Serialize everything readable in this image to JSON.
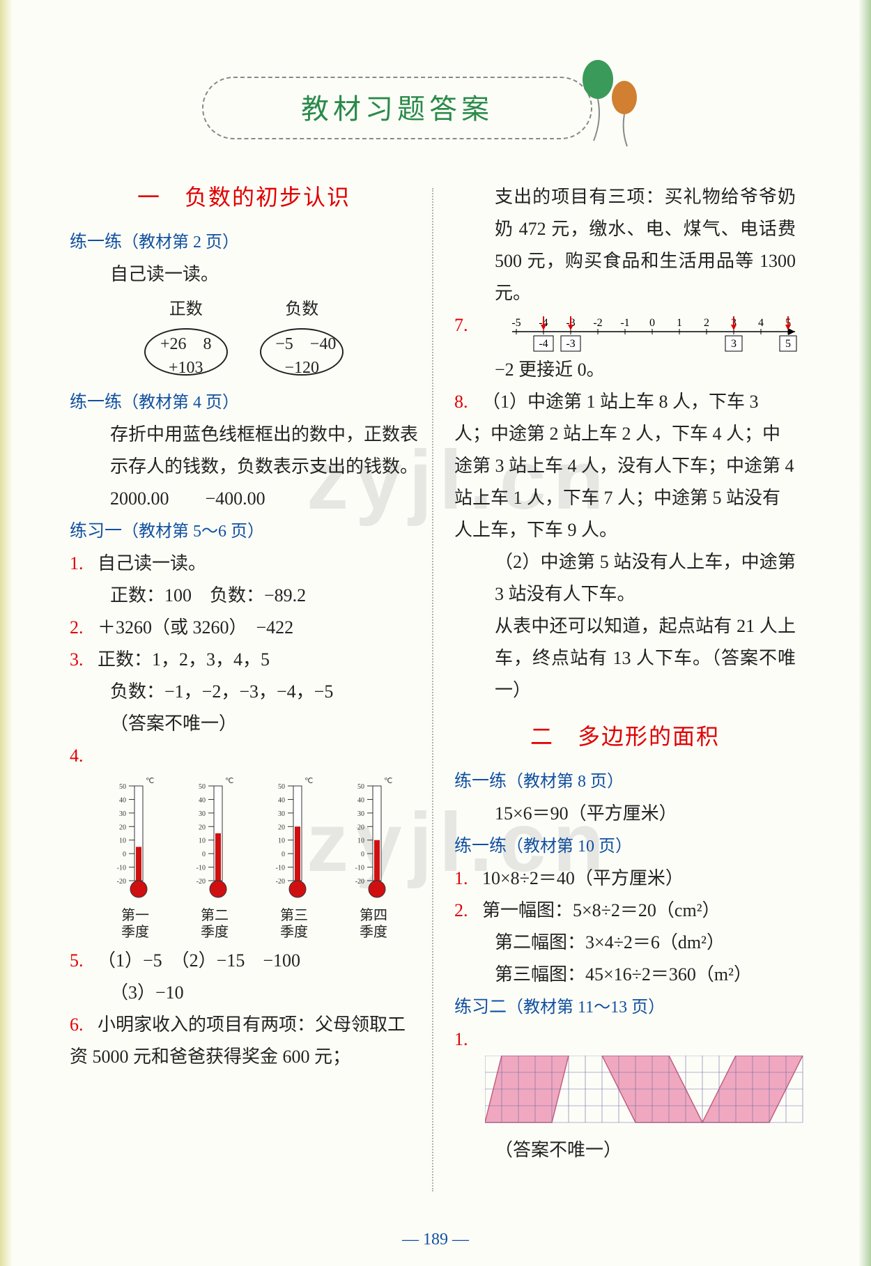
{
  "page_title": "教材习题答案",
  "watermark": "zyjl.cn",
  "page_number": "— 189 —",
  "colors": {
    "red": "#e00000",
    "blue": "#1050a0",
    "green": "#2a8a4a",
    "thermo_red": "#d01010",
    "thermo_border": "#333",
    "grid_fill": "#f0a8c0",
    "grid_line": "#6a6aa0",
    "balloon_green": "#3a9a5a",
    "balloon_orange": "#d08030"
  },
  "section1": {
    "title": "一　负数的初步认识",
    "l1_hdr": "练一练",
    "l1_ref": "（教材第 2 页）",
    "l1_txt": "自己读一读。",
    "pos_hdr": "正数",
    "neg_hdr": "负数",
    "pos_vals": "+26　8\n+103",
    "neg_vals": "−5　−40\n−120",
    "l2_hdr": "练一练",
    "l2_ref": "（教材第 4 页）",
    "l2_p": "存折中用蓝色线框框出的数中，正数表示存人的钱数，负数表示支出的钱数。",
    "l2_v": "2000.00　　−400.00",
    "ex1_hdr": "练习一",
    "ex1_ref": "（教材第 5～6 页）",
    "q1": "1.",
    "q1a": "自己读一读。",
    "q1b": "正数：100　负数：−89.2",
    "q2": "2.",
    "q2a": "＋3260（或 3260）　−422",
    "q3": "3.",
    "q3a": "正数：1，2，3，4，5",
    "q3b": "负数：−1，−2，−3，−4，−5",
    "q3c": "（答案不唯一）",
    "q4": "4.",
    "thermo_unit": "℃",
    "thermo_scale": [
      50,
      40,
      30,
      20,
      10,
      0,
      -10,
      -20
    ],
    "thermos": [
      {
        "label": "第一\n季度",
        "fill_to": 5
      },
      {
        "label": "第二\n季度",
        "fill_to": 15
      },
      {
        "label": "第三\n季度",
        "fill_to": 20
      },
      {
        "label": "第四\n季度",
        "fill_to": 10
      }
    ],
    "q5": "5.",
    "q5a": "（1）−5　（2）−15　−100",
    "q5b": "（3）−10",
    "q6": "6.",
    "q6a": "小明家收入的项目有两项：父母领取工资 5000 元和爸爸获得奖金 600 元；",
    "q6b": "支出的项目有三项：买礼物给爷爷奶奶 472 元，缴水、电、煤气、电话费 500 元，购买食品和生活用品等 1300 元。",
    "q7": "7.",
    "nline_ticks": [
      -5,
      -4,
      -3,
      -2,
      -1,
      0,
      1,
      2,
      3,
      4,
      5
    ],
    "nline_boxes_left": [
      "-4",
      "-3"
    ],
    "nline_boxes_right": [
      "3",
      "5"
    ],
    "nline_arrows": [
      -4,
      -3,
      3,
      5
    ],
    "q7a": "−2 更接近 0。",
    "q8": "8.",
    "q8a": "（1）中途第 1 站上车 8 人，下车 3 人；中途第 2 站上车 2 人，下车 4 人；中途第 3 站上车 4 人，没有人下车；中途第 4 站上车 1 人，下车 7 人；中途第 5 站没有人上车，下车 9 人。",
    "q8b": "（2）中途第 5 站没有人上车，中途第 3 站没有人下车。",
    "q8c": "从表中还可以知道，起点站有 21 人上车，终点站有 13 人下车。（答案不唯一）"
  },
  "section2": {
    "title": "二　多边形的面积",
    "l1_hdr": "练一练",
    "l1_ref": "（教材第 8 页）",
    "l1_v": "15×6＝90（平方厘米）",
    "l2_hdr": "练一练",
    "l2_ref": "（教材第 10 页）",
    "l2_q1": "1.",
    "l2_q1a": "10×8÷2＝40（平方厘米）",
    "l2_q2": "2.",
    "l2_q2a": "第一幅图：5×8÷2＝20（cm²）",
    "l2_q2b": "第二幅图：3×4÷2＝6（dm²）",
    "l2_q2c": "第三幅图：45×16÷2＝360（m²）",
    "ex2_hdr": "练习二",
    "ex2_ref": "（教材第 11～13 页）",
    "ex2_q1": "1.",
    "grid": {
      "rows": 4,
      "cols": 19,
      "cell": 24,
      "shapes": [
        {
          "type": "para",
          "pts": [
            [
              1,
              0
            ],
            [
              5,
              0
            ],
            [
              4,
              4
            ],
            [
              0,
              4
            ]
          ]
        },
        {
          "type": "para",
          "pts": [
            [
              7,
              0
            ],
            [
              11,
              0
            ],
            [
              13,
              4
            ],
            [
              9,
              4
            ]
          ]
        },
        {
          "type": "para",
          "pts": [
            [
              15,
              0
            ],
            [
              19,
              0
            ],
            [
              17,
              4
            ],
            [
              13,
              4
            ]
          ]
        }
      ]
    },
    "ex2_q1a": "（答案不唯一）"
  }
}
